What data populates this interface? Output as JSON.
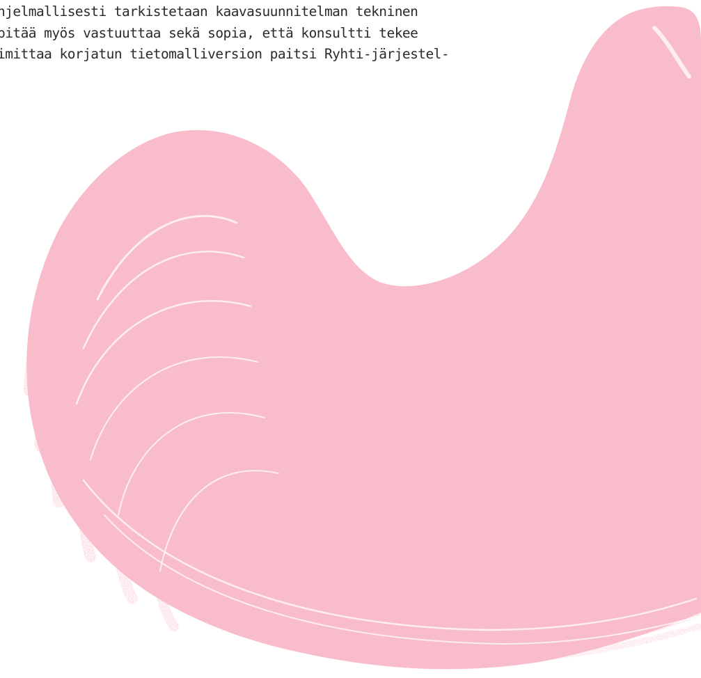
{
  "document": {
    "lines": [
      "hjelmallisesti tarkistetaan kaavasuunnitelman tekninen",
      "pitää myös vastuuttaa sekä sopia, että konsultti tekee",
      "imittaa korjatun tietomalliversion paitsi Ryhti-järjestel-"
    ]
  },
  "decoration": {
    "brush_color": "#f9bccb",
    "text_color": "#2b2b2b"
  }
}
